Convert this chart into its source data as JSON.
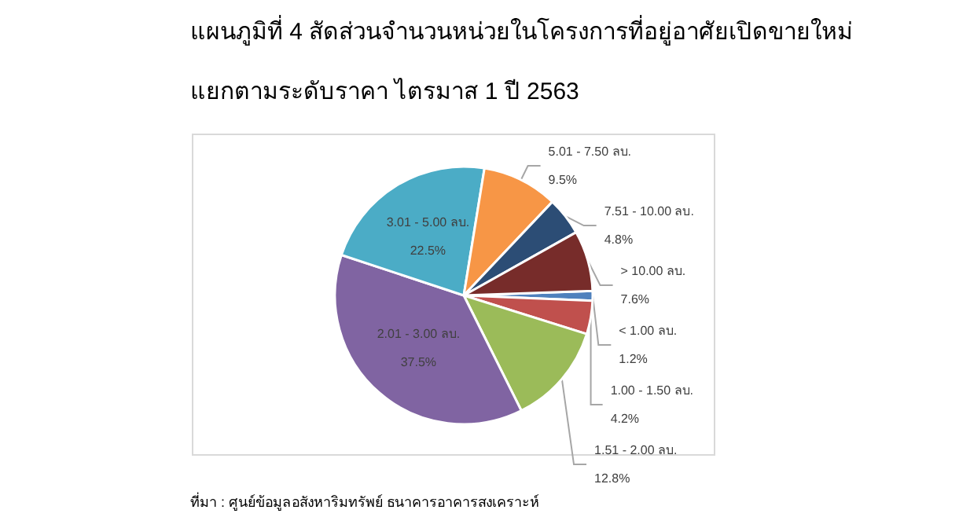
{
  "chart_data": {
    "type": "pie",
    "title": "แผนภูมิที่ 4 สัดส่วนจำนวนหน่วยในโครงการที่อยู่อาศัยเปิดขายใหม่",
    "subtitle": "แยกตามระดับราคา ไตรมาส 1 ปี 2563",
    "categories": [
      "< 1.00 ลบ.",
      "1.00 - 1.50 ลบ.",
      "1.51 - 2.00 ลบ.",
      "2.01 - 3.00 ลบ.",
      "3.01 - 5.00 ลบ.",
      "5.01 - 7.50 ลบ.",
      "7.51 - 10.00 ลบ.",
      "> 10.00 ลบ."
    ],
    "values": [
      1.2,
      4.2,
      12.8,
      37.5,
      22.5,
      9.5,
      4.8,
      7.6
    ],
    "value_labels": [
      "1.2%",
      "4.2%",
      "12.8%",
      "37.5%",
      "22.5%",
      "9.5%",
      "4.8%",
      "7.6%"
    ],
    "colors": [
      "#4f81bd",
      "#c0504d",
      "#9bbb59",
      "#8064a2",
      "#4bacc6",
      "#f79646",
      "#2c4d75",
      "#772c2a"
    ],
    "legend": false,
    "annotations": [
      "ที่มา : ศูนย์ข้อมูลอสังหาริมทรัพย์ ธนาคารอาคารสงเคราะห์"
    ]
  }
}
